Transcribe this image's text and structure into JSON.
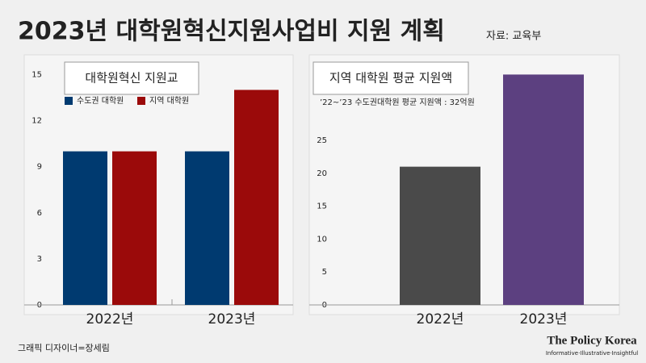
{
  "header": {
    "title": "2023년 대학원혁신지원사업비 지원 계획",
    "source": "자료: 교육부"
  },
  "chart_data": [
    {
      "type": "bar",
      "title": "대학원혁신 지원교",
      "categories": [
        "2022년",
        "2023년"
      ],
      "series": [
        {
          "name": "수도권 대학원",
          "color": "#003a70",
          "values": [
            10,
            10
          ]
        },
        {
          "name": "지역 대학원",
          "color": "#9b0a0a",
          "values": [
            10,
            14
          ]
        }
      ],
      "ylim": [
        0,
        15
      ],
      "yticks": [
        0,
        3,
        6,
        9,
        12,
        15
      ],
      "grid": false
    },
    {
      "type": "bar",
      "title": "지역 대학원 평균 지원액",
      "annotation": "’22~’23 수도권대학원 평균 지원액 : 32억원",
      "categories": [
        "2022년",
        "2023년"
      ],
      "values": [
        21,
        35
      ],
      "colors": [
        "#4a4a4a",
        "#5c4080"
      ],
      "ylim": [
        0,
        35
      ],
      "yticks": [
        0,
        5,
        10,
        15,
        20,
        25
      ],
      "grid": false
    }
  ],
  "footer": {
    "credit": "그래픽 디자이너=장세림",
    "brand": "The Policy Korea",
    "tagline": "Informative·Illustrative·Insightful"
  }
}
